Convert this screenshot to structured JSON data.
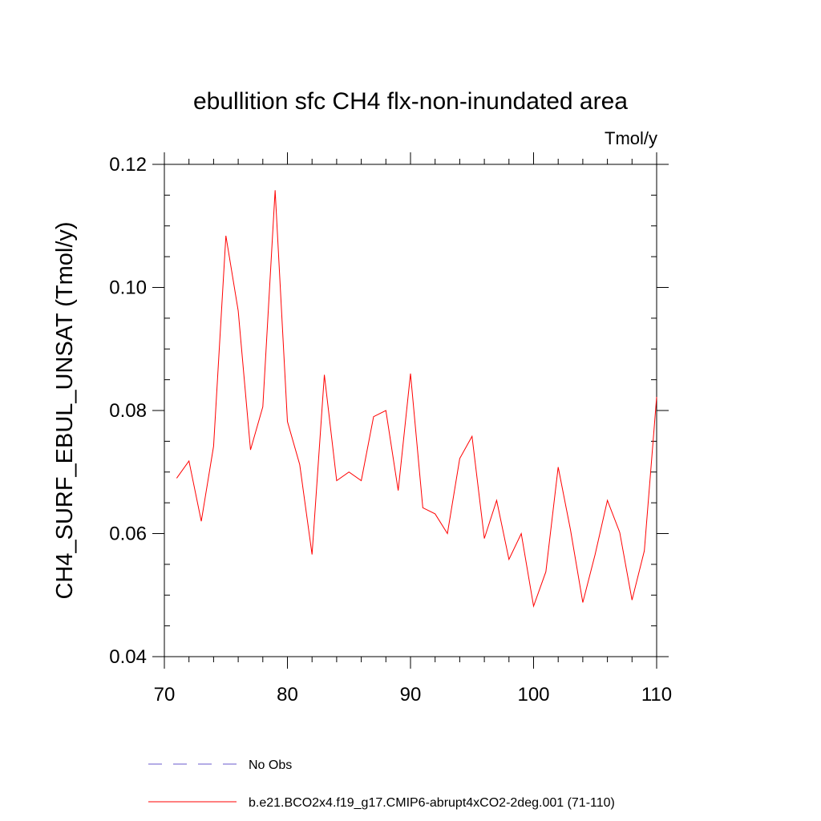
{
  "chart_data": {
    "type": "line",
    "title": "ebullition sfc CH4 flx-non-inundated area",
    "units_label": "Tmol/y",
    "xlabel": "",
    "ylabel": "CH4_SURF_EBUL_UNSAT  (Tmol/y)",
    "xlim": [
      70,
      110
    ],
    "ylim": [
      0.04,
      0.12
    ],
    "xticks": [
      70,
      80,
      90,
      100,
      110
    ],
    "xtick_labels": [
      "70",
      "80",
      "90",
      "100",
      "110"
    ],
    "yticks": [
      0.04,
      0.06,
      0.08,
      0.1,
      0.12
    ],
    "ytick_labels": [
      "0.04",
      "0.06",
      "0.08",
      "0.10",
      "0.12"
    ],
    "grid": false,
    "legend_position": "bottom",
    "series": [
      {
        "name": "b.e21.BCO2x4.f19_g17.CMIP6-abrupt4xCO2-2deg.001 (71-110)",
        "color": "#ff0000",
        "dash": "solid",
        "x": [
          71,
          72,
          73,
          74,
          75,
          76,
          77,
          78,
          79,
          80,
          81,
          82,
          83,
          84,
          85,
          86,
          87,
          88,
          89,
          90,
          91,
          92,
          93,
          94,
          95,
          96,
          97,
          98,
          99,
          100,
          101,
          102,
          103,
          104,
          105,
          106,
          107,
          108,
          109,
          110
        ],
        "values": [
          0.069,
          0.0718,
          0.062,
          0.0742,
          0.1084,
          0.0962,
          0.0736,
          0.0806,
          0.1158,
          0.0782,
          0.0712,
          0.0566,
          0.0858,
          0.0686,
          0.07,
          0.0686,
          0.079,
          0.08,
          0.067,
          0.086,
          0.0642,
          0.0632,
          0.06,
          0.0722,
          0.0758,
          0.0592,
          0.0654,
          0.0558,
          0.06,
          0.0482,
          0.0538,
          0.0708,
          0.0606,
          0.0488,
          0.0566,
          0.0654,
          0.0602,
          0.0492,
          0.0572,
          0.0822
        ]
      },
      {
        "name": "No Obs",
        "color": "#6a5acd",
        "dash": "dashed",
        "x": [],
        "values": []
      }
    ]
  }
}
